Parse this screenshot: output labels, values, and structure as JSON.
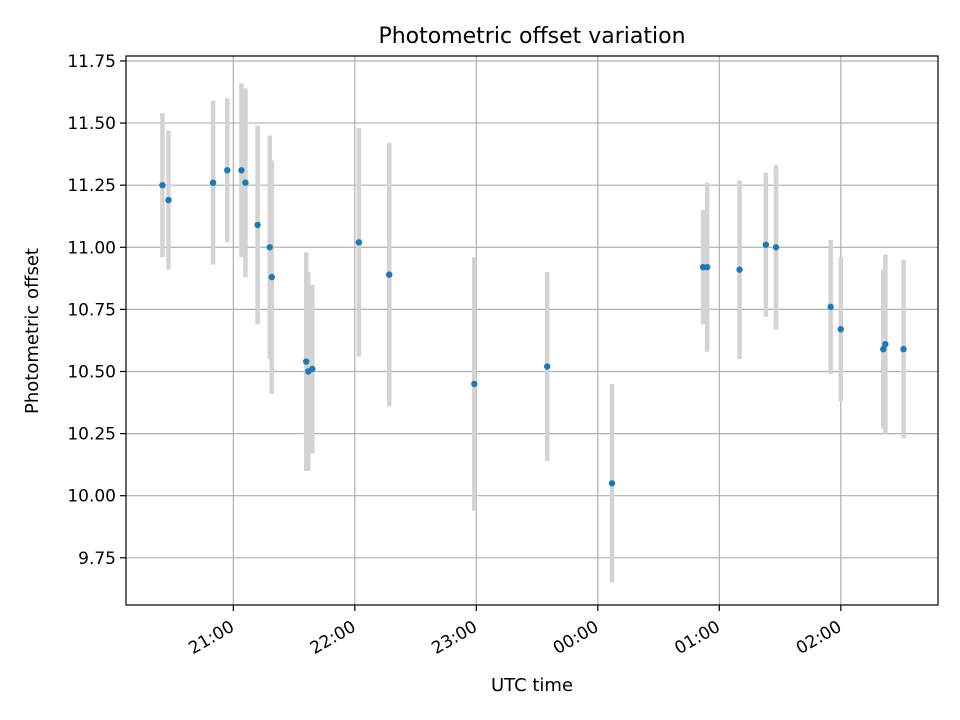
{
  "chart_data": {
    "type": "scatter",
    "title": "Photometric offset variation",
    "xlabel": "UTC time",
    "ylabel": "Photometric offset",
    "x_ticks": [
      "21:00",
      "22:00",
      "23:00",
      "00:00",
      "01:00",
      "02:00"
    ],
    "y_ticks": [
      "9.75",
      "10.00",
      "10.25",
      "10.50",
      "10.75",
      "11.00",
      "11.25",
      "11.50",
      "11.75"
    ],
    "xlim": [
      "20:07",
      "02:48"
    ],
    "ylim": [
      9.56,
      11.77
    ],
    "grid": true,
    "colors": {
      "point": "#1f77b4",
      "errorbar": "#d3d3d3",
      "grid": "#b0b0b0"
    },
    "points": [
      {
        "x": "20:25",
        "y": 11.25,
        "yerr": 0.29
      },
      {
        "x": "20:28",
        "y": 11.19,
        "yerr": 0.28
      },
      {
        "x": "20:50",
        "y": 11.26,
        "yerr": 0.33
      },
      {
        "x": "20:57",
        "y": 11.31,
        "yerr": 0.29
      },
      {
        "x": "21:04",
        "y": 11.31,
        "yerr": 0.35
      },
      {
        "x": "21:06",
        "y": 11.26,
        "yerr": 0.38
      },
      {
        "x": "21:12",
        "y": 11.09,
        "yerr": 0.4
      },
      {
        "x": "21:18",
        "y": 11.0,
        "yerr": 0.45
      },
      {
        "x": "21:19",
        "y": 10.88,
        "yerr": 0.47
      },
      {
        "x": "21:36",
        "y": 10.54,
        "yerr": 0.44
      },
      {
        "x": "21:37",
        "y": 10.5,
        "yerr": 0.4
      },
      {
        "x": "21:39",
        "y": 10.51,
        "yerr": 0.34
      },
      {
        "x": "22:02",
        "y": 11.02,
        "yerr": 0.46
      },
      {
        "x": "22:17",
        "y": 10.89,
        "yerr": 0.53
      },
      {
        "x": "22:59",
        "y": 10.45,
        "yerr": 0.51
      },
      {
        "x": "23:35",
        "y": 10.52,
        "yerr": 0.38
      },
      {
        "x": "00:07",
        "y": 10.05,
        "yerr": 0.4
      },
      {
        "x": "00:52",
        "y": 10.92,
        "yerr": 0.23
      },
      {
        "x": "00:54",
        "y": 10.92,
        "yerr": 0.34
      },
      {
        "x": "01:10",
        "y": 10.91,
        "yerr": 0.36
      },
      {
        "x": "01:23",
        "y": 11.01,
        "yerr": 0.29
      },
      {
        "x": "01:28",
        "y": 11.0,
        "yerr": 0.33
      },
      {
        "x": "01:55",
        "y": 10.76,
        "yerr": 0.27
      },
      {
        "x": "02:00",
        "y": 10.67,
        "yerr": 0.29
      },
      {
        "x": "02:21",
        "y": 10.59,
        "yerr": 0.32
      },
      {
        "x": "02:22",
        "y": 10.61,
        "yerr": 0.36
      },
      {
        "x": "02:31",
        "y": 10.59,
        "yerr": 0.36
      }
    ]
  }
}
